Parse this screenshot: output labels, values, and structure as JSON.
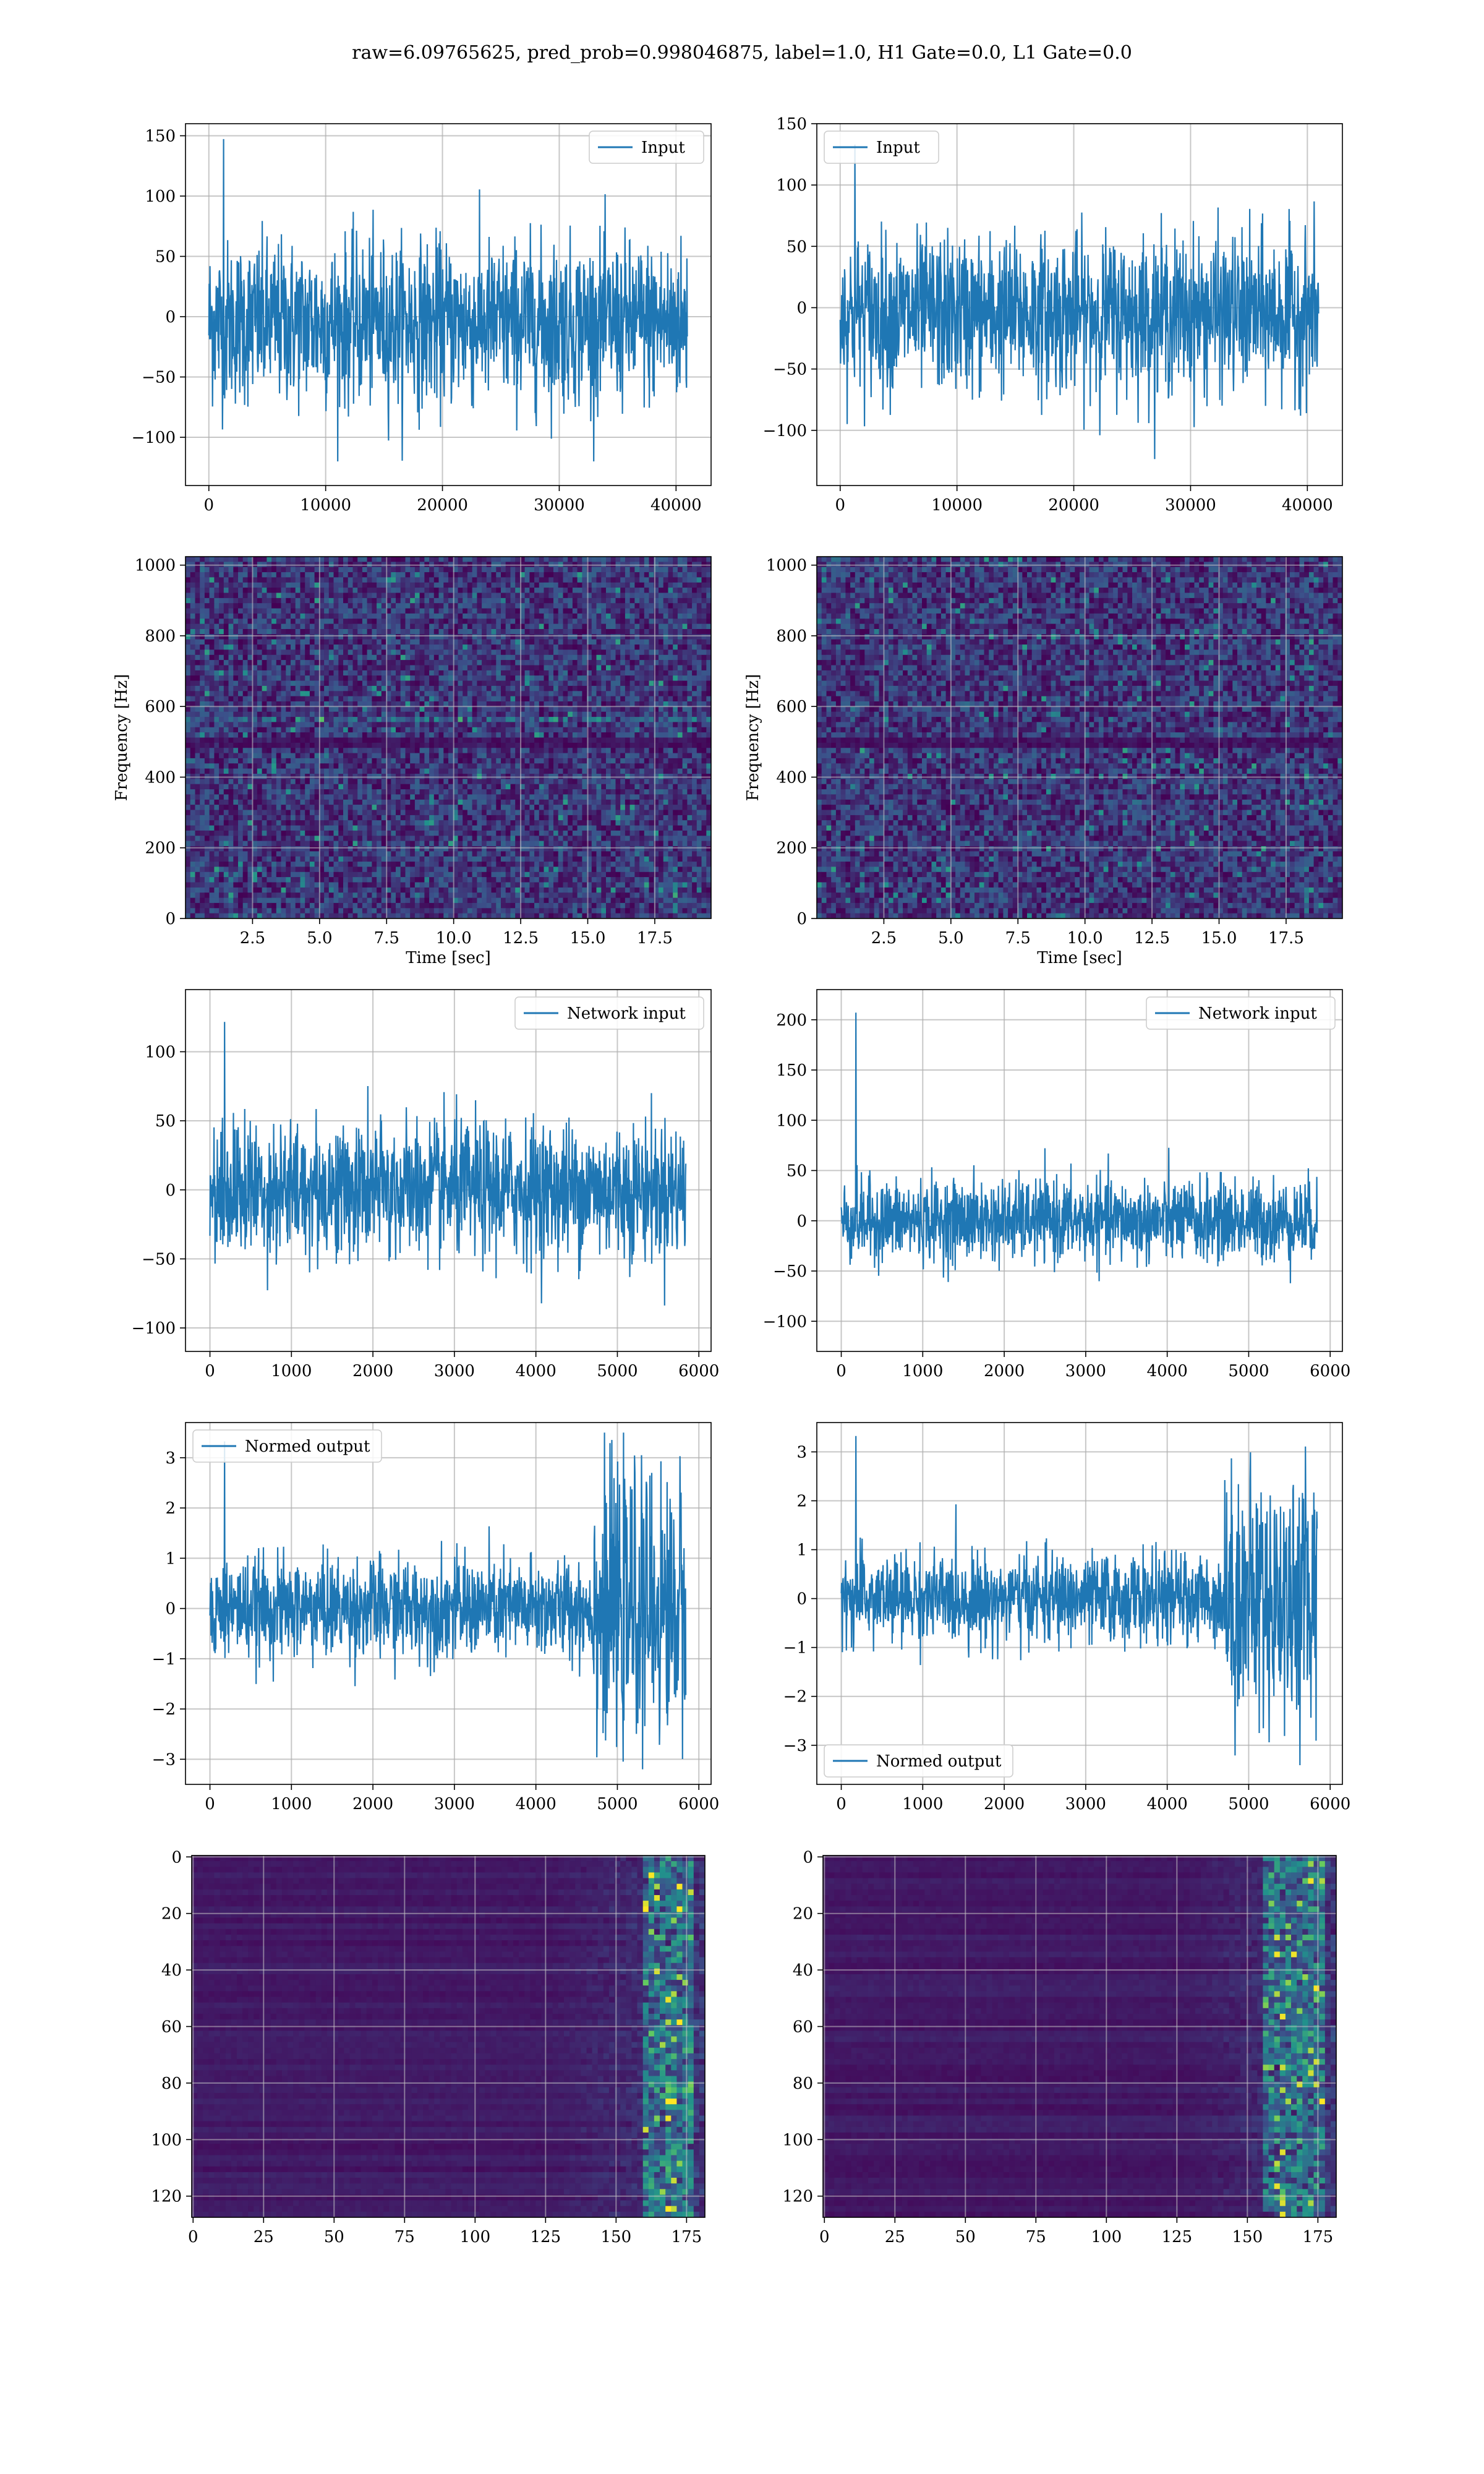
{
  "figure_title": "raw=6.09765625, pred_prob=0.998046875, label=1.0, H1 Gate=0.0, L1 Gate=0.0",
  "colors": {
    "line": "#1f77b4",
    "grid": "#b0b0b0",
    "axes": "#000000",
    "map_bg": "#3b1e62",
    "map_mid": "#2c6f8e",
    "map_hot": "#bde43a"
  },
  "chart_data": [
    {
      "id": "row1-left",
      "type": "line",
      "legend": "Input",
      "legend_position": "top-right",
      "xlim": [
        -2000,
        43000
      ],
      "ylim": [
        -140,
        160
      ],
      "grid": true,
      "xticks": [
        "0",
        "10000",
        "20000",
        "30000",
        "40000"
      ],
      "xtick_values": [
        0,
        10000,
        20000,
        30000,
        40000
      ],
      "yticks": [
        "−100",
        "−50",
        "0",
        "50",
        "100",
        "150"
      ],
      "ytick_values": [
        -100,
        -50,
        0,
        50,
        100,
        150
      ],
      "series": [
        {
          "name": "Input",
          "x_range": [
            0,
            40960
          ],
          "envelope_center": -5,
          "envelope_amplitude": 75,
          "peak_max": 155,
          "peak_min": -120
        }
      ]
    },
    {
      "id": "row1-right",
      "type": "line",
      "legend": "Input",
      "legend_position": "top-left",
      "xlim": [
        -2000,
        43000
      ],
      "ylim": [
        -145,
        150
      ],
      "grid": true,
      "xticks": [
        "0",
        "10000",
        "20000",
        "30000",
        "40000"
      ],
      "xtick_values": [
        0,
        10000,
        20000,
        30000,
        40000
      ],
      "yticks": [
        "−100",
        "−50",
        "0",
        "50",
        "100",
        "150"
      ],
      "ytick_values": [
        -100,
        -50,
        0,
        50,
        100,
        150
      ],
      "series": [
        {
          "name": "Input",
          "x_range": [
            0,
            40960
          ],
          "envelope_center": -5,
          "envelope_amplitude": 70,
          "peak_max": 140,
          "peak_min": -125
        }
      ]
    },
    {
      "id": "row2-left",
      "type": "heatmap",
      "xlabel": "Time [sec]",
      "ylabel": "Frequency [Hz]",
      "xlim": [
        0,
        19.6
      ],
      "ylim": [
        0,
        1024
      ],
      "grid": true,
      "xticks": [
        "2.5",
        "5.0",
        "7.5",
        "10.0",
        "12.5",
        "15.0",
        "17.5"
      ],
      "xtick_values": [
        2.5,
        5,
        7.5,
        10,
        12.5,
        15,
        17.5
      ],
      "yticks": [
        "0",
        "200",
        "400",
        "600",
        "800",
        "1000"
      ],
      "ytick_values": [
        0,
        200,
        400,
        600,
        800,
        1000
      ],
      "features": {
        "bright_band_hz": 550,
        "dark_band_hz": 500,
        "chirp_time_sec": 18.2
      }
    },
    {
      "id": "row2-right",
      "type": "heatmap",
      "xlabel": "Time [sec]",
      "ylabel": "Frequency [Hz]",
      "xlim": [
        0,
        19.6
      ],
      "ylim": [
        0,
        1024
      ],
      "grid": true,
      "xticks": [
        "2.5",
        "5.0",
        "7.5",
        "10.0",
        "12.5",
        "15.0",
        "17.5"
      ],
      "xtick_values": [
        2.5,
        5,
        7.5,
        10,
        12.5,
        15,
        17.5
      ],
      "yticks": [
        "0",
        "200",
        "400",
        "600",
        "800",
        "1000"
      ],
      "ytick_values": [
        0,
        200,
        400,
        600,
        800,
        1000
      ],
      "features": {
        "bright_band_hz": 550,
        "dark_band_hz": 500,
        "chirp_time_sec": 18.2
      }
    },
    {
      "id": "row3-left",
      "type": "line",
      "legend": "Network input",
      "legend_position": "top-right",
      "xlim": [
        -300,
        6150
      ],
      "ylim": [
        -117,
        145
      ],
      "grid": true,
      "xticks": [
        "0",
        "1000",
        "2000",
        "3000",
        "4000",
        "5000",
        "6000"
      ],
      "xtick_values": [
        0,
        1000,
        2000,
        3000,
        4000,
        5000,
        6000
      ],
      "yticks": [
        "−100",
        "−50",
        "0",
        "50",
        "100"
      ],
      "ytick_values": [
        -100,
        -50,
        0,
        50,
        100
      ],
      "series": [
        {
          "name": "Network input",
          "x_range": [
            0,
            5840
          ],
          "envelope_center": 0,
          "envelope_amplitude": 55,
          "peak_max": 128,
          "peak_min": -103
        }
      ]
    },
    {
      "id": "row3-right",
      "type": "line",
      "legend": "Network input",
      "legend_position": "top-right",
      "xlim": [
        -300,
        6150
      ],
      "ylim": [
        -130,
        230
      ],
      "grid": true,
      "xticks": [
        "0",
        "1000",
        "2000",
        "3000",
        "4000",
        "5000",
        "6000"
      ],
      "xtick_values": [
        0,
        1000,
        2000,
        3000,
        4000,
        5000,
        6000
      ],
      "yticks": [
        "−100",
        "−50",
        "0",
        "50",
        "100",
        "150",
        "200"
      ],
      "ytick_values": [
        -100,
        -50,
        0,
        50,
        100,
        150,
        200
      ],
      "series": [
        {
          "name": "Network input",
          "x_range": [
            0,
            5840
          ],
          "envelope_center": 0,
          "envelope_amplitude": 45,
          "peak_max": 218,
          "peak_min": -115
        }
      ]
    },
    {
      "id": "row4-left",
      "type": "line",
      "legend": "Normed output",
      "legend_position": "top-left",
      "xlim": [
        -300,
        6150
      ],
      "ylim": [
        -3.5,
        3.7
      ],
      "grid": true,
      "xticks": [
        "0",
        "1000",
        "2000",
        "3000",
        "4000",
        "5000",
        "6000"
      ],
      "xtick_values": [
        0,
        1000,
        2000,
        3000,
        4000,
        5000,
        6000
      ],
      "yticks": [
        "−3",
        "−2",
        "−1",
        "0",
        "1",
        "2",
        "3"
      ],
      "ytick_values": [
        -3,
        -2,
        -1,
        0,
        1,
        2,
        3
      ],
      "series": [
        {
          "name": "Normed output",
          "x_range": [
            0,
            5840
          ],
          "envelope_center": 0,
          "envelope_amplitude": 1.1,
          "burst_range": [
            4700,
            5840
          ],
          "burst_amplitude": 3.4,
          "peak_max": 3.5,
          "peak_min": -3.2
        }
      ]
    },
    {
      "id": "row4-right",
      "type": "line",
      "legend": "Normed output",
      "legend_position": "bottom-left",
      "xlim": [
        -300,
        6150
      ],
      "ylim": [
        -3.8,
        3.6
      ],
      "grid": true,
      "xticks": [
        "0",
        "1000",
        "2000",
        "3000",
        "4000",
        "5000",
        "6000"
      ],
      "xtick_values": [
        0,
        1000,
        2000,
        3000,
        4000,
        5000,
        6000
      ],
      "yticks": [
        "−3",
        "−2",
        "−1",
        "0",
        "1",
        "2",
        "3"
      ],
      "ytick_values": [
        -3,
        -2,
        -1,
        0,
        1,
        2,
        3
      ],
      "series": [
        {
          "name": "Normed output",
          "x_range": [
            0,
            5840
          ],
          "envelope_center": 0,
          "envelope_amplitude": 1.0,
          "burst_range": [
            4700,
            5840
          ],
          "burst_amplitude": 3.3,
          "peak_max": 3.5,
          "peak_min": -3.5
        }
      ]
    },
    {
      "id": "row5-left",
      "type": "heatmap",
      "y_inverted": true,
      "xlim": [
        -0.5,
        181.5
      ],
      "ylim": [
        127.5,
        -0.5
      ],
      "grid": true,
      "xticks": [
        "0",
        "25",
        "50",
        "75",
        "100",
        "125",
        "150",
        "175"
      ],
      "xtick_values": [
        0,
        25,
        50,
        75,
        100,
        125,
        150,
        175
      ],
      "yticks": [
        "0",
        "20",
        "40",
        "60",
        "80",
        "100",
        "120"
      ],
      "ytick_values": [
        0,
        20,
        40,
        60,
        80,
        100,
        120
      ],
      "features": {
        "activity_start_col": 125,
        "hot_cols": [
          160,
          175
        ]
      }
    },
    {
      "id": "row5-right",
      "type": "heatmap",
      "y_inverted": true,
      "xlim": [
        -0.5,
        181.5
      ],
      "ylim": [
        127.5,
        -0.5
      ],
      "grid": true,
      "xticks": [
        "0",
        "25",
        "50",
        "75",
        "100",
        "125",
        "150",
        "175"
      ],
      "xtick_values": [
        0,
        25,
        50,
        75,
        100,
        125,
        150,
        175
      ],
      "yticks": [
        "0",
        "20",
        "40",
        "60",
        "80",
        "100",
        "120"
      ],
      "ytick_values": [
        0,
        20,
        40,
        60,
        80,
        100,
        120
      ],
      "features": {
        "activity_start_col": 125,
        "hot_cols": [
          155,
          175
        ]
      }
    }
  ]
}
